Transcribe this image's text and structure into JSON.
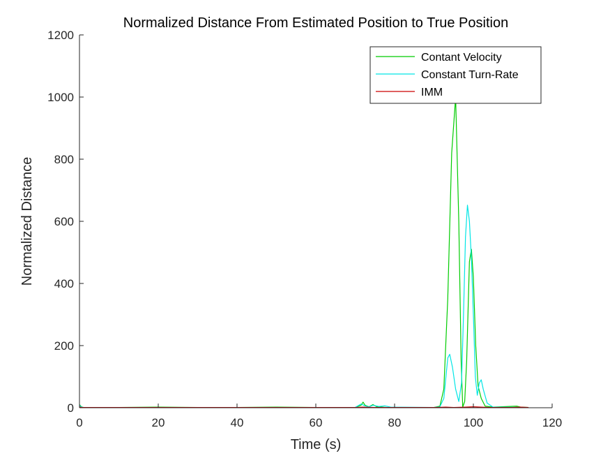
{
  "chart_data": {
    "type": "line",
    "title": "Normalized Distance From Estimated Position to True Position",
    "xlabel": "Time (s)",
    "ylabel": "Normalized Distance",
    "xlim": [
      0,
      120
    ],
    "ylim": [
      0,
      1200
    ],
    "xticks": [
      0,
      20,
      40,
      60,
      80,
      100,
      120
    ],
    "yticks": [
      0,
      200,
      400,
      600,
      800,
      1000,
      1200
    ],
    "grid": false,
    "legend_position": "top-right",
    "series": [
      {
        "name": "Contant Velocity",
        "color": "#00cc00",
        "points": [
          [
            0,
            10
          ],
          [
            0.5,
            3
          ],
          [
            1,
            1
          ],
          [
            10,
            1
          ],
          [
            20,
            2
          ],
          [
            30,
            1
          ],
          [
            40,
            1
          ],
          [
            50,
            2
          ],
          [
            60,
            1
          ],
          [
            70,
            1
          ],
          [
            71.5,
            8
          ],
          [
            72,
            18
          ],
          [
            72.5,
            8
          ],
          [
            73.5,
            3
          ],
          [
            74.5,
            10
          ],
          [
            75.5,
            3
          ],
          [
            78,
            1
          ],
          [
            90,
            1
          ],
          [
            91.5,
            5
          ],
          [
            92.5,
            60
          ],
          [
            93.5,
            350
          ],
          [
            94.5,
            820
          ],
          [
            95.5,
            1000
          ],
          [
            96.3,
            600
          ],
          [
            96.9,
            150
          ],
          [
            97.3,
            2
          ],
          [
            97.8,
            20
          ],
          [
            98.3,
            150
          ],
          [
            99,
            470
          ],
          [
            99.5,
            510
          ],
          [
            100,
            420
          ],
          [
            100.6,
            200
          ],
          [
            101.2,
            70
          ],
          [
            102,
            30
          ],
          [
            103,
            5
          ],
          [
            105,
            2
          ],
          [
            111,
            5
          ],
          [
            112,
            2
          ],
          [
            114,
            1
          ]
        ]
      },
      {
        "name": "Constant Turn-Rate",
        "color": "#00e5e5",
        "points": [
          [
            0,
            8
          ],
          [
            0.5,
            2
          ],
          [
            1,
            1
          ],
          [
            10,
            1
          ],
          [
            20,
            1
          ],
          [
            30,
            1
          ],
          [
            40,
            1
          ],
          [
            50,
            1
          ],
          [
            60,
            1
          ],
          [
            70,
            1
          ],
          [
            71.5,
            12
          ],
          [
            72.5,
            6
          ],
          [
            73.5,
            3
          ],
          [
            74.5,
            8
          ],
          [
            76,
            4
          ],
          [
            77.5,
            6
          ],
          [
            79,
            2
          ],
          [
            90,
            1
          ],
          [
            91.5,
            3
          ],
          [
            92.5,
            30
          ],
          [
            93.5,
            160
          ],
          [
            94,
            172
          ],
          [
            94.7,
            130
          ],
          [
            95.5,
            60
          ],
          [
            96.3,
            20
          ],
          [
            97,
            80
          ],
          [
            97.5,
            300
          ],
          [
            98,
            550
          ],
          [
            98.5,
            652
          ],
          [
            99,
            600
          ],
          [
            99.5,
            480
          ],
          [
            100,
            300
          ],
          [
            100.5,
            100
          ],
          [
            101,
            40
          ],
          [
            101.5,
            80
          ],
          [
            102,
            90
          ],
          [
            102.5,
            60
          ],
          [
            103.5,
            15
          ],
          [
            105,
            2
          ],
          [
            114,
            1
          ]
        ]
      },
      {
        "name": "IMM",
        "color": "#cc0000",
        "points": [
          [
            0,
            3
          ],
          [
            0.5,
            1
          ],
          [
            1,
            1
          ],
          [
            10,
            1
          ],
          [
            20,
            1
          ],
          [
            30,
            1
          ],
          [
            40,
            1
          ],
          [
            50,
            1
          ],
          [
            60,
            1
          ],
          [
            70,
            1
          ],
          [
            72,
            2
          ],
          [
            75,
            1
          ],
          [
            80,
            1
          ],
          [
            90,
            1
          ],
          [
            93,
            2
          ],
          [
            95,
            1
          ],
          [
            98,
            2
          ],
          [
            100,
            3
          ],
          [
            102,
            2
          ],
          [
            104,
            1
          ],
          [
            110,
            1
          ],
          [
            112,
            2
          ],
          [
            114,
            1
          ]
        ]
      }
    ]
  }
}
